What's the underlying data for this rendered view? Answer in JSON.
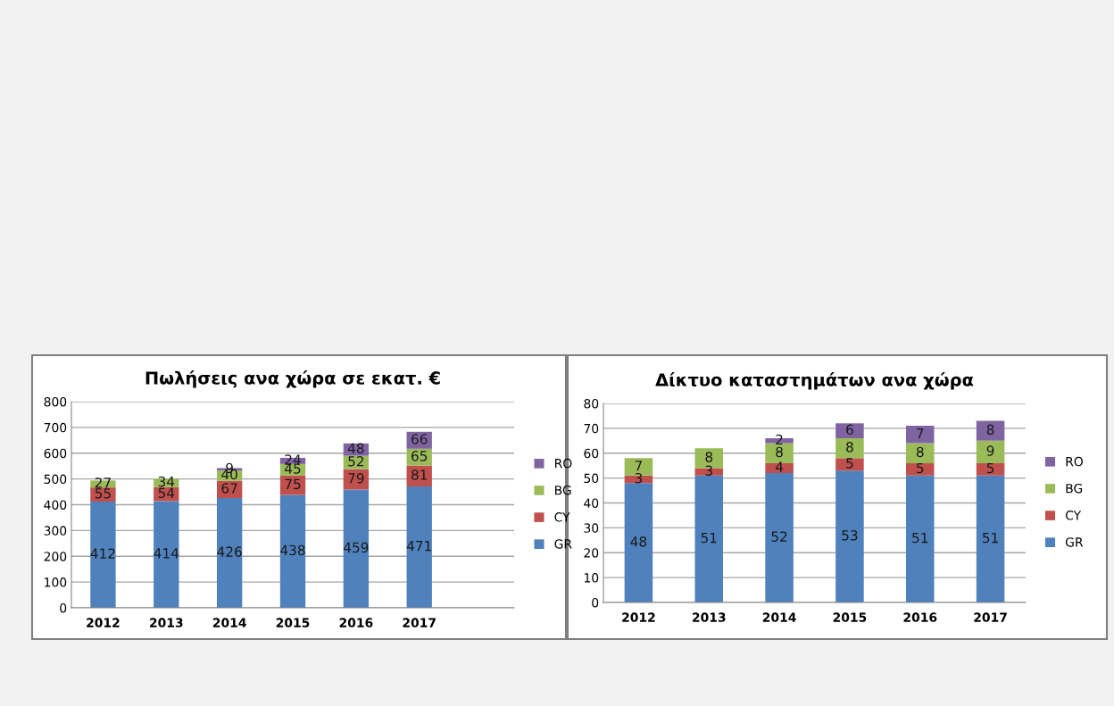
{
  "chart_data": [
    {
      "type": "bar",
      "title": "Πωλήσεις ανα χώρα σε εκατ. €",
      "stacked": true,
      "data_labels": true,
      "grid": "y",
      "legend": "right",
      "categories": [
        "2012",
        "2013",
        "2014",
        "2015",
        "2016",
        "2017",
        null
      ],
      "ylim": [
        0,
        800
      ],
      "yticks": [
        0,
        100,
        200,
        300,
        400,
        500,
        600,
        700,
        800
      ],
      "series": [
        {
          "name": "GR",
          "color": "#4f81bd",
          "values": [
            412,
            414,
            426,
            438,
            459,
            471,
            null
          ]
        },
        {
          "name": "CY",
          "color": "#c0504d",
          "values": [
            55,
            54,
            67,
            75,
            79,
            81,
            null
          ]
        },
        {
          "name": "BG",
          "color": "#9bbb59",
          "values": [
            27,
            34,
            40,
            45,
            52,
            65,
            null
          ]
        },
        {
          "name": "RO",
          "color": "#8064a2",
          "values": [
            null,
            null,
            9,
            24,
            48,
            66,
            null
          ]
        }
      ]
    },
    {
      "type": "bar",
      "title": "Δίκτυο καταστημάτων ανα χώρα",
      "stacked": true,
      "data_labels": true,
      "grid": "y",
      "legend": "right",
      "categories": [
        "2012",
        "2013",
        "2014",
        "2015",
        "2016",
        "2017"
      ],
      "ylim": [
        0,
        80
      ],
      "yticks": [
        0,
        10,
        20,
        30,
        40,
        50,
        60,
        70,
        80
      ],
      "series": [
        {
          "name": "GR",
          "color": "#4f81bd",
          "values": [
            48,
            51,
            52,
            53,
            51,
            51
          ]
        },
        {
          "name": "CY",
          "color": "#c0504d",
          "values": [
            3,
            3,
            4,
            5,
            5,
            5
          ]
        },
        {
          "name": "BG",
          "color": "#9bbb59",
          "values": [
            7,
            8,
            8,
            8,
            8,
            9
          ]
        },
        {
          "name": "RO",
          "color": "#8064a2",
          "values": [
            null,
            null,
            2,
            6,
            7,
            8
          ]
        }
      ]
    }
  ]
}
